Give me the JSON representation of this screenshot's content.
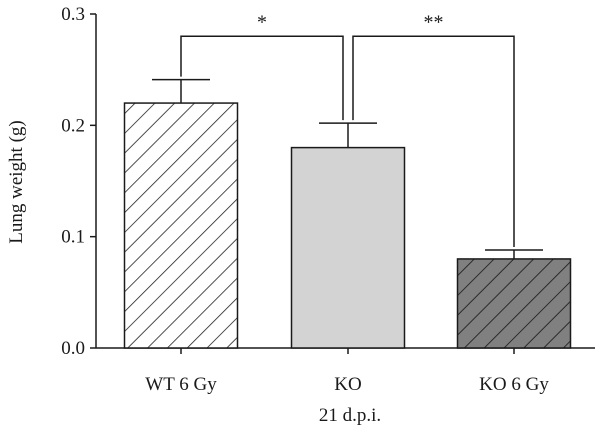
{
  "chart_data": {
    "type": "bar",
    "categories": [
      "WT 6 Gy",
      "KO",
      "KO 6 Gy"
    ],
    "values": [
      0.22,
      0.18,
      0.08
    ],
    "errors": [
      0.021,
      0.022,
      0.008
    ],
    "title": "",
    "xlabel": "21 d.p.i.",
    "ylabel": "Lung weight (g)",
    "ylim": [
      0,
      0.3
    ],
    "yticks": [
      "0.0",
      "0.1",
      "0.2",
      "0.3"
    ],
    "bar_styles": [
      {
        "fill": "#ffffff",
        "hatch": "#222222"
      },
      {
        "fill": "#d3d3d3",
        "hatch": null
      },
      {
        "fill": "#808080",
        "hatch": "#222222"
      }
    ],
    "significance": [
      {
        "from": 0,
        "to": 1,
        "label": "*"
      },
      {
        "from": 1,
        "to": 2,
        "label": "**"
      }
    ],
    "grid": false
  }
}
